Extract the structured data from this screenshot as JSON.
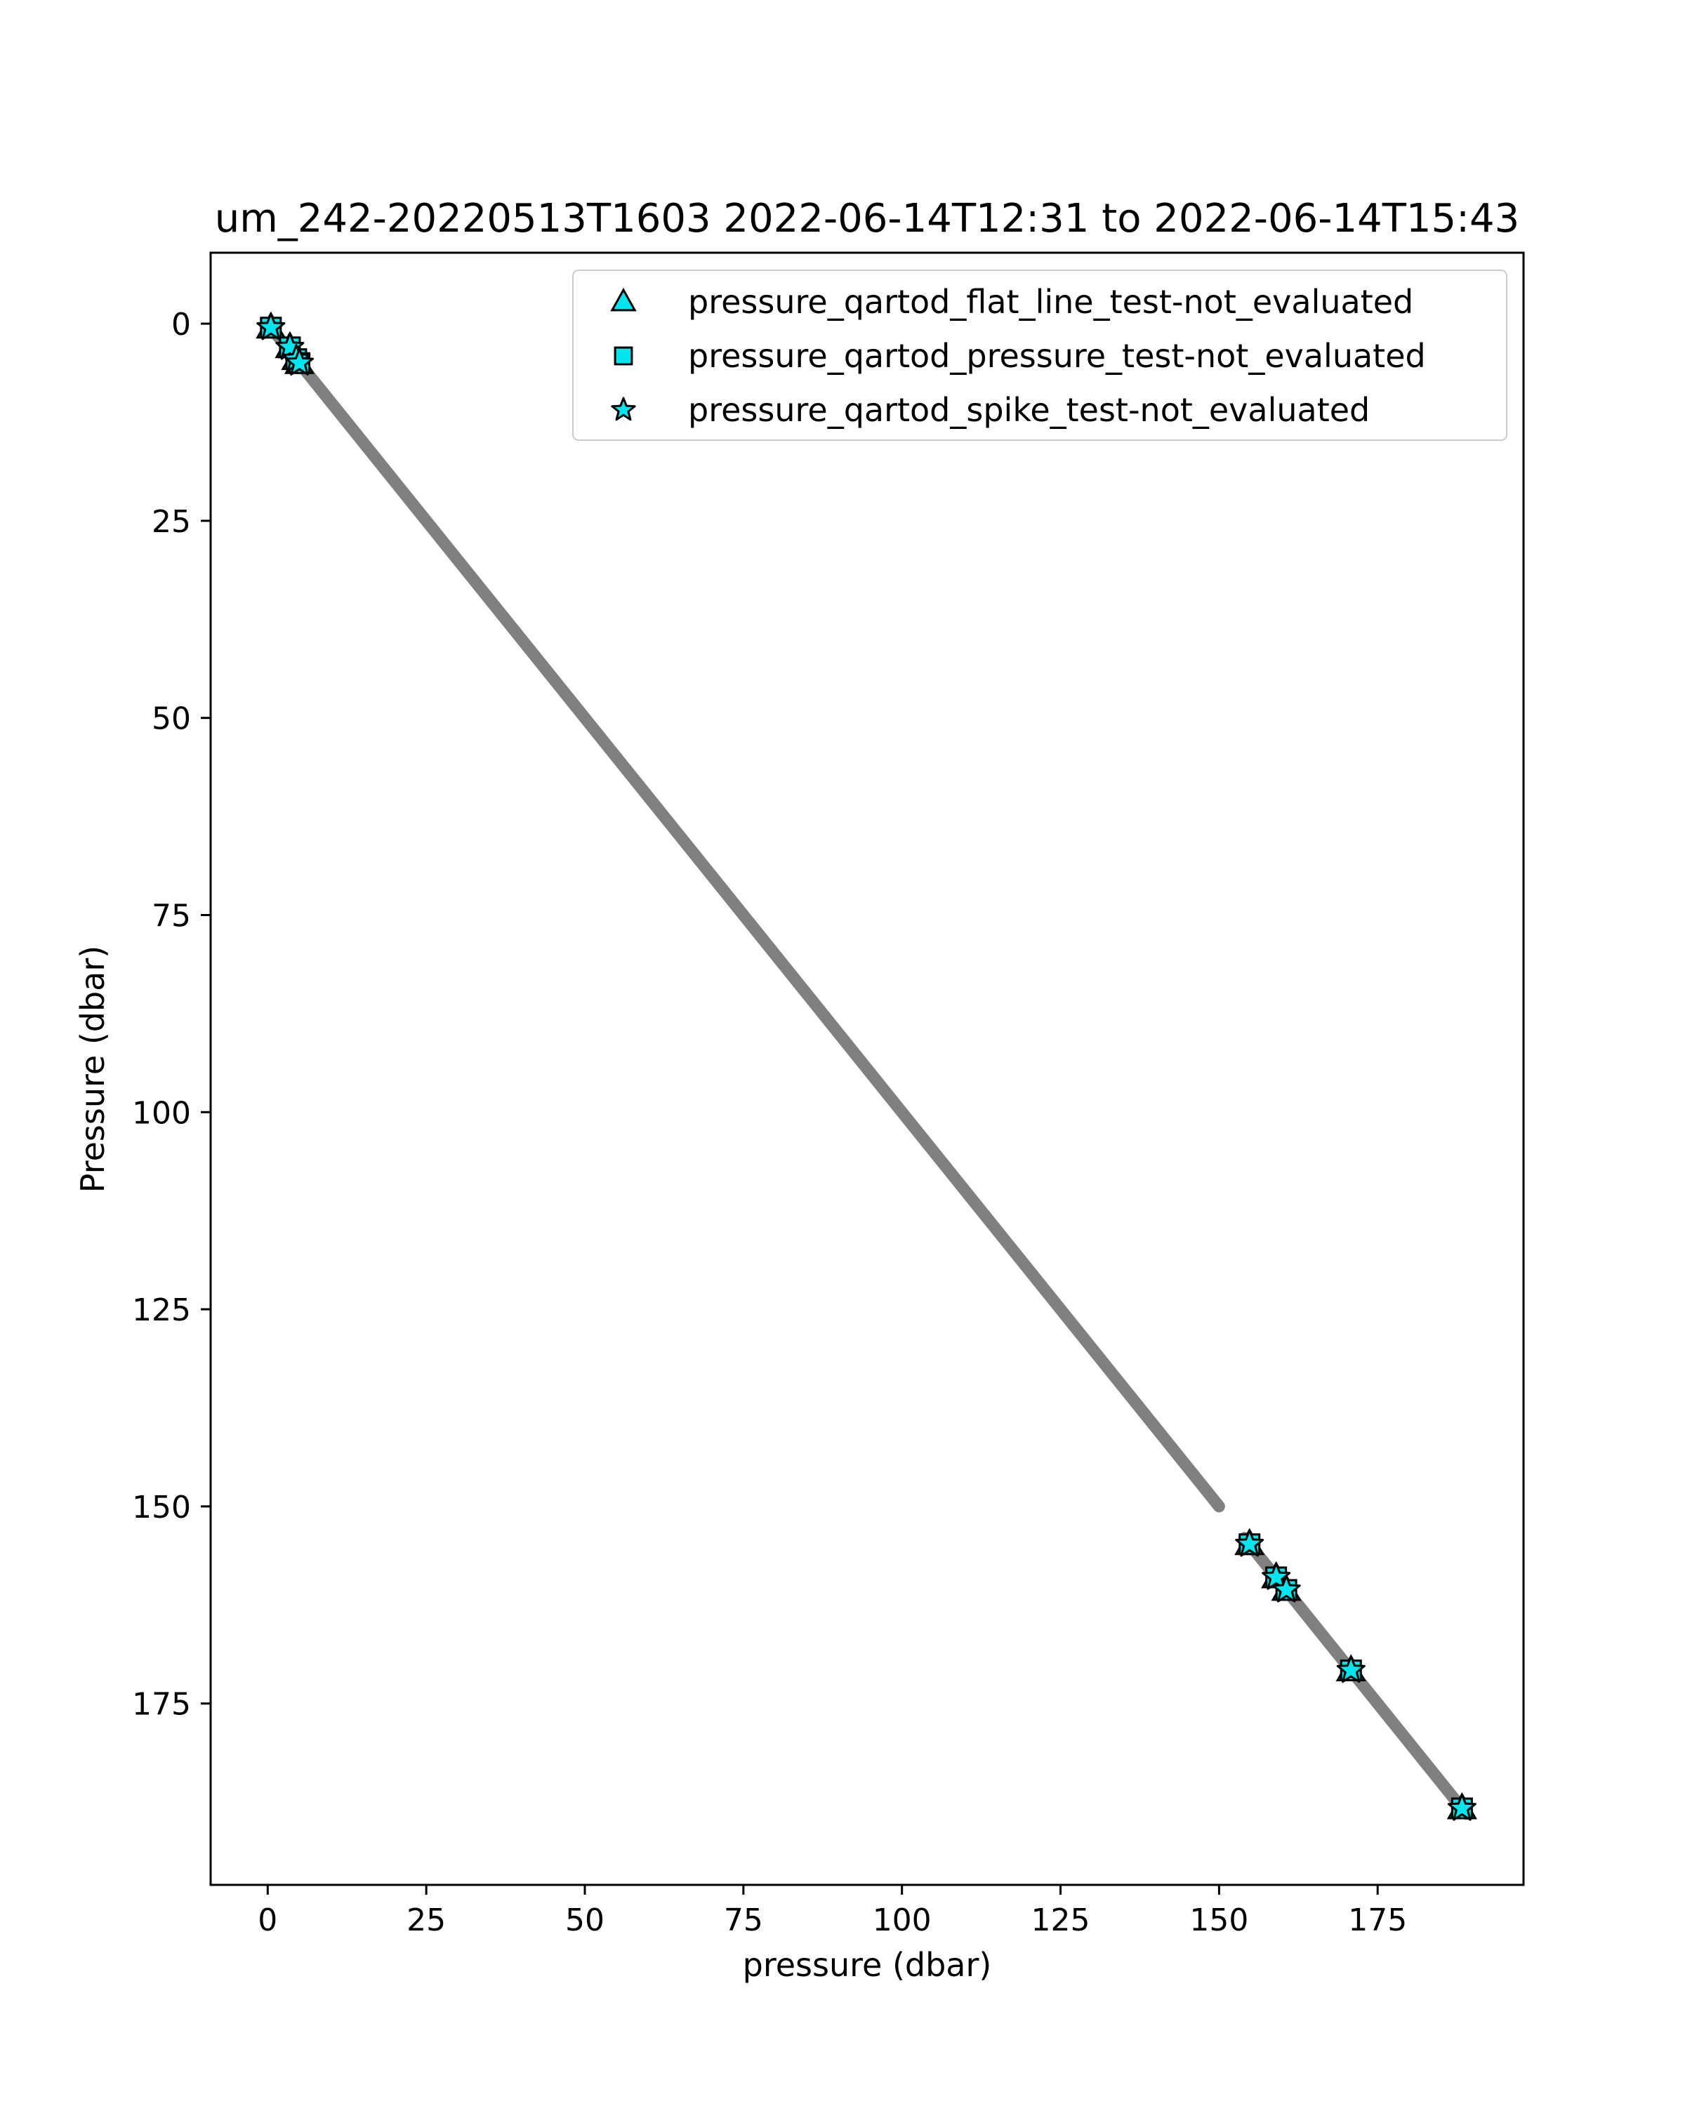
{
  "chart_data": {
    "type": "scatter",
    "title": "um_242-20220513T1603 2022-06-14T12:31 to 2022-06-14T15:43",
    "xlabel": "pressure (dbar)",
    "ylabel": "Pressure (dbar)",
    "xlim": [
      -9,
      198
    ],
    "ylim": [
      198,
      -9
    ],
    "y_inverted": true,
    "xticks": [
      0,
      25,
      50,
      75,
      100,
      125,
      150,
      175
    ],
    "yticks": [
      0,
      25,
      50,
      75,
      100,
      125,
      150,
      175
    ],
    "grid": false,
    "legend_position": "top-right",
    "profile": {
      "color": "#808080",
      "segments": [
        [
          0.5,
          150
        ],
        [
          154,
          189
        ]
      ]
    },
    "series": [
      {
        "name": "pressure_qartod_flat_line_test-not_evaluated",
        "marker": "triangle",
        "color": "#00e5ee",
        "points": [
          [
            0.5,
            0.5
          ],
          [
            3.5,
            3.0
          ],
          [
            4.5,
            4.5
          ],
          [
            5.0,
            5.0
          ],
          [
            154.8,
            154.8
          ],
          [
            159.0,
            159.0
          ],
          [
            160.6,
            160.6
          ],
          [
            170.8,
            170.8
          ],
          [
            188.3,
            188.3
          ]
        ]
      },
      {
        "name": "pressure_qartod_pressure_test-not_evaluated",
        "marker": "square",
        "color": "#00e5ee",
        "points": [
          [
            0.5,
            0.5
          ],
          [
            3.5,
            3.0
          ],
          [
            4.5,
            4.5
          ],
          [
            5.0,
            5.0
          ],
          [
            154.8,
            154.8
          ],
          [
            159.0,
            159.0
          ],
          [
            160.6,
            160.6
          ],
          [
            170.8,
            170.8
          ],
          [
            188.3,
            188.3
          ]
        ]
      },
      {
        "name": "pressure_qartod_spike_test-not_evaluated",
        "marker": "star",
        "color": "#00e5ee",
        "points": [
          [
            0.5,
            0.5
          ],
          [
            3.5,
            3.0
          ],
          [
            4.5,
            4.5
          ],
          [
            5.0,
            5.0
          ],
          [
            154.8,
            154.8
          ],
          [
            159.0,
            159.0
          ],
          [
            160.6,
            160.6
          ],
          [
            170.8,
            170.8
          ],
          [
            188.3,
            188.3
          ]
        ]
      }
    ]
  }
}
